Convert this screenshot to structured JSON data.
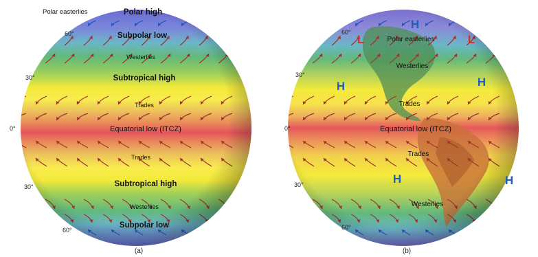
{
  "colors": {
    "polar": "#6f6fd6",
    "subpolar": "#6bb6c8",
    "westerlies": "#6fbf7a",
    "subtropical": "#f7ea3a",
    "trades": "#e7b85a",
    "equatorial": "#e8555d",
    "arrow": "#a0322a",
    "pressure_high": "#1c5fb8",
    "pressure_low": "#d2342a"
  },
  "figure_a": {
    "caption": "(a)",
    "labels": {
      "polar_easterlies": "Polar easterlies",
      "polar_high": "Polar high",
      "subpolar_low_n": "Subpolar low",
      "westerlies_n": "Westerlies",
      "subtropical_high_n": "Subtropical high",
      "trades_n": "Trades",
      "equatorial_low": "Equatorial low (ITCZ)",
      "trades_s": "Trades",
      "subtropical_high_s": "Subtropical high",
      "westerlies_s": "Westerlies",
      "subpolar_low_s": "Subpolar low"
    },
    "latitudes": {
      "n60": "60°",
      "n30": "30°",
      "eq": "0°",
      "s30": "30°",
      "s60": "60°"
    }
  },
  "figure_b": {
    "caption": "(b)",
    "labels": {
      "polar_easterlies": "Polar easterlies",
      "westerlies_n": "Westerlies",
      "trades_n": "Trades",
      "equatorial_low": "Equatorial low (ITCZ)",
      "trades_s": "Trades",
      "westerlies_s": "Westerlies"
    },
    "latitudes": {
      "n60": "60°",
      "n30": "30°",
      "eq": "0°",
      "s30": "30°",
      "s60": "60°"
    },
    "pressure_symbols": {
      "high": "H",
      "low": "L"
    }
  }
}
